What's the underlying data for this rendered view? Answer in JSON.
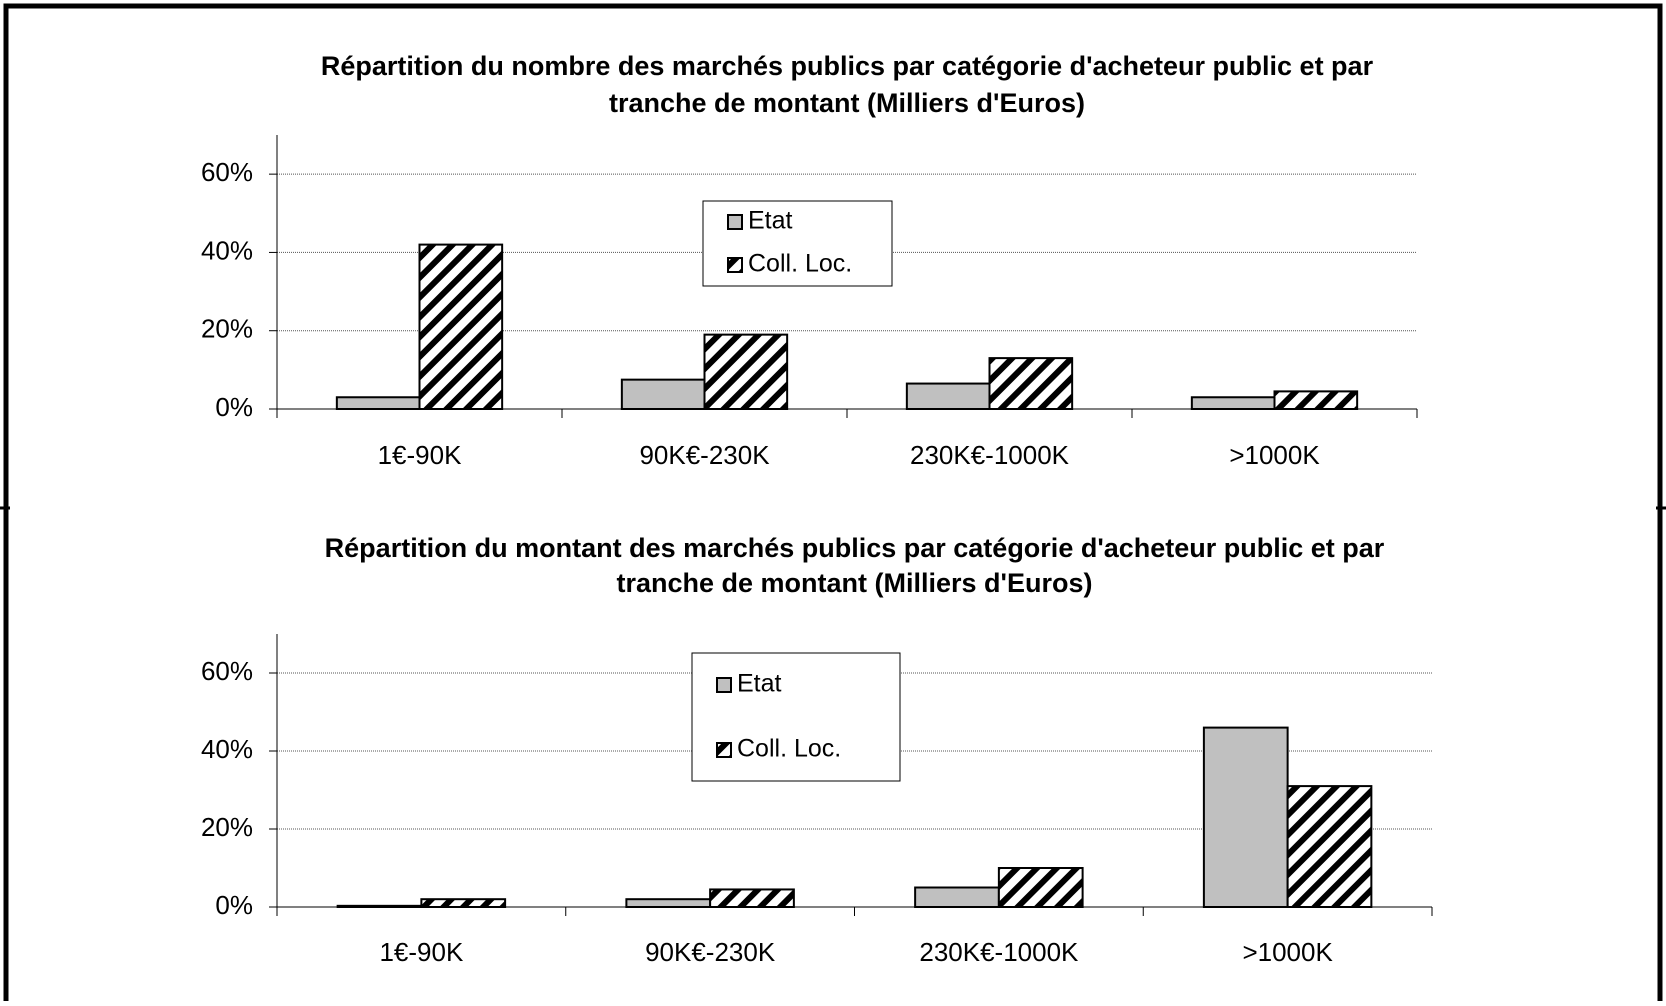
{
  "chart_data": [
    {
      "type": "bar",
      "title": [
        "Répartition du nombre des marchés publics par catégorie d'acheteur public et par",
        "tranche de montant (Milliers d'Euros)"
      ],
      "categories": [
        "1€-90K",
        "90K€-230K",
        "230K€-1000K",
        ">1000K"
      ],
      "series": [
        {
          "name": "Etat",
          "color": "#c0c0c0",
          "values": [
            3,
            7.5,
            6.5,
            3
          ]
        },
        {
          "name": "Coll. Loc.",
          "color": "#ffffff",
          "pattern": "hatch",
          "values": [
            42,
            19,
            13,
            4.5
          ]
        }
      ],
      "ylim": [
        0,
        70
      ],
      "yticks": [
        {
          "value": 0,
          "label": "0%"
        },
        {
          "value": 20,
          "label": "20%"
        },
        {
          "value": 40,
          "label": "40%"
        },
        {
          "value": 60,
          "label": "60%"
        }
      ],
      "grid": true
    },
    {
      "type": "bar",
      "title": [
        "Répartition du montant des marchés publics par catégorie d'acheteur public et par",
        "tranche de montant (Milliers d'Euros)"
      ],
      "categories": [
        "1€-90K",
        "90K€-230K",
        "230K€-1000K",
        ">1000K"
      ],
      "series": [
        {
          "name": "Etat",
          "color": "#c0c0c0",
          "values": [
            0.3,
            2,
            5,
            46
          ]
        },
        {
          "name": "Coll. Loc.",
          "color": "#ffffff",
          "pattern": "hatch",
          "values": [
            2,
            4.5,
            10,
            31
          ]
        }
      ],
      "ylim": [
        0,
        70
      ],
      "yticks": [
        {
          "value": 0,
          "label": "0%"
        },
        {
          "value": 20,
          "label": "20%"
        },
        {
          "value": 40,
          "label": "40%"
        },
        {
          "value": 60,
          "label": "60%"
        }
      ],
      "grid": true
    }
  ]
}
